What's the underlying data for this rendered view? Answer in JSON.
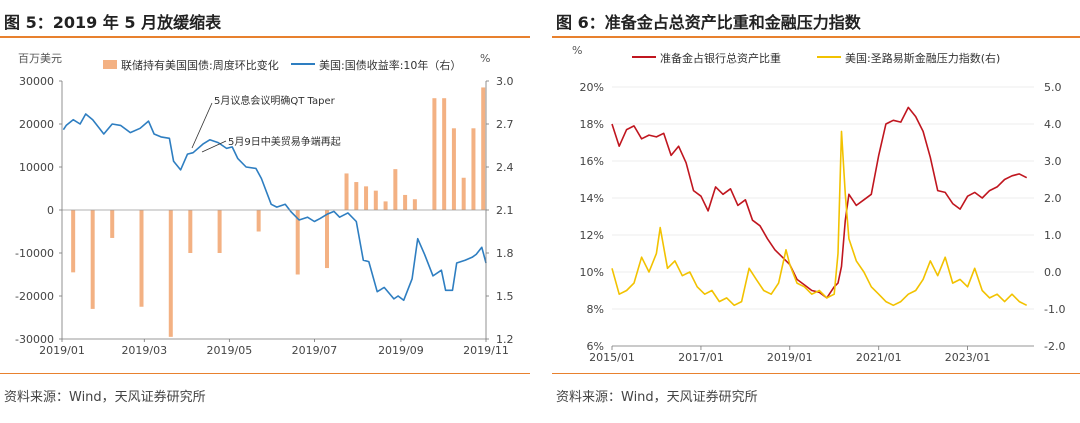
{
  "left": {
    "title": "图 5：2019 年 5 月放缓缩表",
    "source": "资料来源：Wind，天风证券研究所",
    "unit_left": "百万美元",
    "unit_right": "%",
    "legend": [
      "联储持有美国国债:周度环比变化",
      "美国:国债收益率:10年（右）"
    ],
    "annotations": [
      "5月议息会议明确QT Taper",
      "5月9日中美贸易争端再起"
    ]
  },
  "right": {
    "title": "图 6：准备金占总资产比重和金融压力指数",
    "source": "资料来源：Wind，天风证券研究所",
    "unit_left": "%",
    "legend": [
      "准备金占银行总资产比重",
      "美国:圣路易斯金融压力指数(右)"
    ]
  },
  "colors": {
    "bar": "#f3b183",
    "blue": "#2e7ec1",
    "red": "#c0161f",
    "yellow": "#f2c200",
    "accent": "#e8812e"
  },
  "chart_data": [
    {
      "type": "bar+line",
      "x_ticks": [
        "2019/01",
        "2019/03",
        "2019/05",
        "2019/07",
        "2019/09",
        "2019/11"
      ],
      "x_range": [
        "2019-01-01",
        "2019-11-01"
      ],
      "y_left": {
        "range": [
          -30000,
          30000
        ],
        "ticks": [
          "30000",
          "20000",
          "10000",
          "0",
          "-10000",
          "-20000",
          "-30000"
        ]
      },
      "y_right": {
        "range": [
          1.2,
          3.0
        ],
        "ticks": [
          "3.0",
          "2.7",
          "2.4",
          "2.1",
          "1.8",
          "1.5",
          "1.2"
        ]
      },
      "series": [
        {
          "name": "联储持有美国国债:周度环比变化",
          "type": "bar",
          "points": [
            [
              "2019-01-09",
              -14500
            ],
            [
              "2019-01-23",
              -23000
            ],
            [
              "2019-02-06",
              -6500
            ],
            [
              "2019-02-27",
              -22500
            ],
            [
              "2019-03-20",
              -29500
            ],
            [
              "2019-04-03",
              -10000
            ],
            [
              "2019-04-24",
              -10000
            ],
            [
              "2019-05-22",
              -5000
            ],
            [
              "2019-06-19",
              -15000
            ],
            [
              "2019-07-10",
              -13500
            ],
            [
              "2019-07-24",
              8500
            ],
            [
              "2019-07-31",
              6500
            ],
            [
              "2019-08-07",
              5500
            ],
            [
              "2019-08-14",
              4500
            ],
            [
              "2019-08-21",
              2000
            ],
            [
              "2019-08-28",
              9500
            ],
            [
              "2019-09-04",
              3500
            ],
            [
              "2019-09-11",
              2500
            ],
            [
              "2019-09-25",
              26000
            ],
            [
              "2019-10-02",
              26000
            ],
            [
              "2019-10-09",
              19000
            ],
            [
              "2019-10-16",
              7500
            ],
            [
              "2019-10-23",
              19000
            ],
            [
              "2019-10-30",
              28500
            ]
          ]
        },
        {
          "name": "美国:国债收益率:10年（右）",
          "type": "line",
          "points": [
            [
              "2019-01-02",
              2.66
            ],
            [
              "2019-01-04",
              2.69
            ],
            [
              "2019-01-09",
              2.73
            ],
            [
              "2019-01-14",
              2.7
            ],
            [
              "2019-01-18",
              2.77
            ],
            [
              "2019-01-23",
              2.73
            ],
            [
              "2019-01-31",
              2.63
            ],
            [
              "2019-02-06",
              2.7
            ],
            [
              "2019-02-12",
              2.69
            ],
            [
              "2019-02-19",
              2.64
            ],
            [
              "2019-02-26",
              2.67
            ],
            [
              "2019-03-04",
              2.72
            ],
            [
              "2019-03-08",
              2.63
            ],
            [
              "2019-03-13",
              2.61
            ],
            [
              "2019-03-19",
              2.6
            ],
            [
              "2019-03-22",
              2.44
            ],
            [
              "2019-03-27",
              2.38
            ],
            [
              "2019-04-01",
              2.49
            ],
            [
              "2019-04-05",
              2.5
            ],
            [
              "2019-04-12",
              2.56
            ],
            [
              "2019-04-17",
              2.59
            ],
            [
              "2019-04-23",
              2.57
            ],
            [
              "2019-04-29",
              2.53
            ],
            [
              "2019-05-03",
              2.54
            ],
            [
              "2019-05-07",
              2.46
            ],
            [
              "2019-05-13",
              2.4
            ],
            [
              "2019-05-20",
              2.39
            ],
            [
              "2019-05-24",
              2.32
            ],
            [
              "2019-05-31",
              2.14
            ],
            [
              "2019-06-04",
              2.12
            ],
            [
              "2019-06-10",
              2.14
            ],
            [
              "2019-06-14",
              2.09
            ],
            [
              "2019-06-20",
              2.03
            ],
            [
              "2019-06-26",
              2.05
            ],
            [
              "2019-07-01",
              2.02
            ],
            [
              "2019-07-05",
              2.04
            ],
            [
              "2019-07-10",
              2.07
            ],
            [
              "2019-07-15",
              2.09
            ],
            [
              "2019-07-19",
              2.05
            ],
            [
              "2019-07-25",
              2.08
            ],
            [
              "2019-07-31",
              2.02
            ],
            [
              "2019-08-05",
              1.75
            ],
            [
              "2019-08-09",
              1.74
            ],
            [
              "2019-08-15",
              1.53
            ],
            [
              "2019-08-20",
              1.56
            ],
            [
              "2019-08-27",
              1.48
            ],
            [
              "2019-08-30",
              1.5
            ],
            [
              "2019-09-03",
              1.47
            ],
            [
              "2019-09-09",
              1.62
            ],
            [
              "2019-09-13",
              1.9
            ],
            [
              "2019-09-18",
              1.79
            ],
            [
              "2019-09-24",
              1.64
            ],
            [
              "2019-09-30",
              1.68
            ],
            [
              "2019-10-03",
              1.54
            ],
            [
              "2019-10-08",
              1.54
            ],
            [
              "2019-10-11",
              1.73
            ],
            [
              "2019-10-17",
              1.75
            ],
            [
              "2019-10-22",
              1.77
            ],
            [
              "2019-10-25",
              1.79
            ],
            [
              "2019-10-29",
              1.84
            ],
            [
              "2019-11-01",
              1.73
            ]
          ]
        }
      ]
    },
    {
      "type": "line",
      "x_ticks": [
        "2015/01",
        "2017/01",
        "2019/01",
        "2021/01",
        "2023/01"
      ],
      "x_range": [
        "2015-01-01",
        "2024-06-30"
      ],
      "y_left": {
        "range": [
          6,
          20
        ],
        "ticks": [
          "20%",
          "18%",
          "16%",
          "14%",
          "12%",
          "10%",
          "8%",
          "6%"
        ]
      },
      "y_right": {
        "range": [
          -2.0,
          5.0
        ],
        "ticks": [
          "5.0",
          "4.0",
          "3.0",
          "2.0",
          "1.0",
          "0.0",
          "-1.0",
          "-2.0"
        ]
      },
      "series": [
        {
          "name": "准备金占银行总资产比重",
          "axis": "left",
          "points": [
            [
              "2015-01",
              18.0
            ],
            [
              "2015-03",
              16.8
            ],
            [
              "2015-05",
              17.7
            ],
            [
              "2015-07",
              17.9
            ],
            [
              "2015-09",
              17.2
            ],
            [
              "2015-11",
              17.4
            ],
            [
              "2016-01",
              17.3
            ],
            [
              "2016-03",
              17.5
            ],
            [
              "2016-05",
              16.3
            ],
            [
              "2016-07",
              16.8
            ],
            [
              "2016-09",
              15.9
            ],
            [
              "2016-11",
              14.4
            ],
            [
              "2017-01",
              14.1
            ],
            [
              "2017-03",
              13.3
            ],
            [
              "2017-05",
              14.6
            ],
            [
              "2017-07",
              14.2
            ],
            [
              "2017-09",
              14.5
            ],
            [
              "2017-11",
              13.6
            ],
            [
              "2018-01",
              13.9
            ],
            [
              "2018-03",
              12.8
            ],
            [
              "2018-05",
              12.5
            ],
            [
              "2018-07",
              11.8
            ],
            [
              "2018-09",
              11.2
            ],
            [
              "2018-11",
              10.8
            ],
            [
              "2019-01",
              10.4
            ],
            [
              "2019-03",
              9.6
            ],
            [
              "2019-05",
              9.3
            ],
            [
              "2019-07",
              9.0
            ],
            [
              "2019-09",
              8.9
            ],
            [
              "2019-11",
              8.6
            ],
            [
              "2020-01",
              9.2
            ],
            [
              "2020-02",
              9.4
            ],
            [
              "2020-03",
              10.3
            ],
            [
              "2020-04",
              12.8
            ],
            [
              "2020-05",
              14.2
            ],
            [
              "2020-07",
              13.6
            ],
            [
              "2020-09",
              13.9
            ],
            [
              "2020-11",
              14.2
            ],
            [
              "2021-01",
              16.3
            ],
            [
              "2021-03",
              18.0
            ],
            [
              "2021-05",
              18.2
            ],
            [
              "2021-07",
              18.1
            ],
            [
              "2021-09",
              18.9
            ],
            [
              "2021-11",
              18.4
            ],
            [
              "2022-01",
              17.6
            ],
            [
              "2022-03",
              16.2
            ],
            [
              "2022-05",
              14.4
            ],
            [
              "2022-07",
              14.3
            ],
            [
              "2022-09",
              13.7
            ],
            [
              "2022-11",
              13.4
            ],
            [
              "2023-01",
              14.1
            ],
            [
              "2023-03",
              14.3
            ],
            [
              "2023-05",
              14.0
            ],
            [
              "2023-07",
              14.4
            ],
            [
              "2023-09",
              14.6
            ],
            [
              "2023-11",
              15.0
            ],
            [
              "2024-01",
              15.2
            ],
            [
              "2024-03",
              15.3
            ],
            [
              "2024-05",
              15.1
            ]
          ]
        },
        {
          "name": "美国:圣路易斯金融压力指数(右)",
          "axis": "right",
          "points": [
            [
              "2015-01",
              0.1
            ],
            [
              "2015-03",
              -0.6
            ],
            [
              "2015-05",
              -0.5
            ],
            [
              "2015-07",
              -0.3
            ],
            [
              "2015-09",
              0.4
            ],
            [
              "2015-11",
              0.0
            ],
            [
              "2016-01",
              0.5
            ],
            [
              "2016-02",
              1.2
            ],
            [
              "2016-04",
              0.1
            ],
            [
              "2016-06",
              0.3
            ],
            [
              "2016-08",
              -0.1
            ],
            [
              "2016-10",
              0.0
            ],
            [
              "2016-12",
              -0.4
            ],
            [
              "2017-02",
              -0.6
            ],
            [
              "2017-04",
              -0.5
            ],
            [
              "2017-06",
              -0.8
            ],
            [
              "2017-08",
              -0.7
            ],
            [
              "2017-10",
              -0.9
            ],
            [
              "2017-12",
              -0.8
            ],
            [
              "2018-02",
              0.1
            ],
            [
              "2018-04",
              -0.2
            ],
            [
              "2018-06",
              -0.5
            ],
            [
              "2018-08",
              -0.6
            ],
            [
              "2018-10",
              -0.3
            ],
            [
              "2018-12",
              0.6
            ],
            [
              "2019-01",
              0.2
            ],
            [
              "2019-03",
              -0.3
            ],
            [
              "2019-05",
              -0.4
            ],
            [
              "2019-07",
              -0.6
            ],
            [
              "2019-09",
              -0.5
            ],
            [
              "2019-11",
              -0.7
            ],
            [
              "2020-01",
              -0.6
            ],
            [
              "2020-02",
              0.5
            ],
            [
              "2020-03",
              3.8
            ],
            [
              "2020-04",
              2.1
            ],
            [
              "2020-05",
              0.9
            ],
            [
              "2020-07",
              0.3
            ],
            [
              "2020-09",
              0.0
            ],
            [
              "2020-11",
              -0.4
            ],
            [
              "2021-01",
              -0.6
            ],
            [
              "2021-03",
              -0.8
            ],
            [
              "2021-05",
              -0.9
            ],
            [
              "2021-07",
              -0.8
            ],
            [
              "2021-09",
              -0.6
            ],
            [
              "2021-11",
              -0.5
            ],
            [
              "2022-01",
              -0.2
            ],
            [
              "2022-03",
              0.3
            ],
            [
              "2022-05",
              -0.1
            ],
            [
              "2022-07",
              0.4
            ],
            [
              "2022-09",
              -0.3
            ],
            [
              "2022-11",
              -0.2
            ],
            [
              "2023-01",
              -0.4
            ],
            [
              "2023-03",
              0.1
            ],
            [
              "2023-05",
              -0.5
            ],
            [
              "2023-07",
              -0.7
            ],
            [
              "2023-09",
              -0.6
            ],
            [
              "2023-11",
              -0.8
            ],
            [
              "2024-01",
              -0.6
            ],
            [
              "2024-03",
              -0.8
            ],
            [
              "2024-05",
              -0.9
            ]
          ]
        }
      ]
    }
  ]
}
